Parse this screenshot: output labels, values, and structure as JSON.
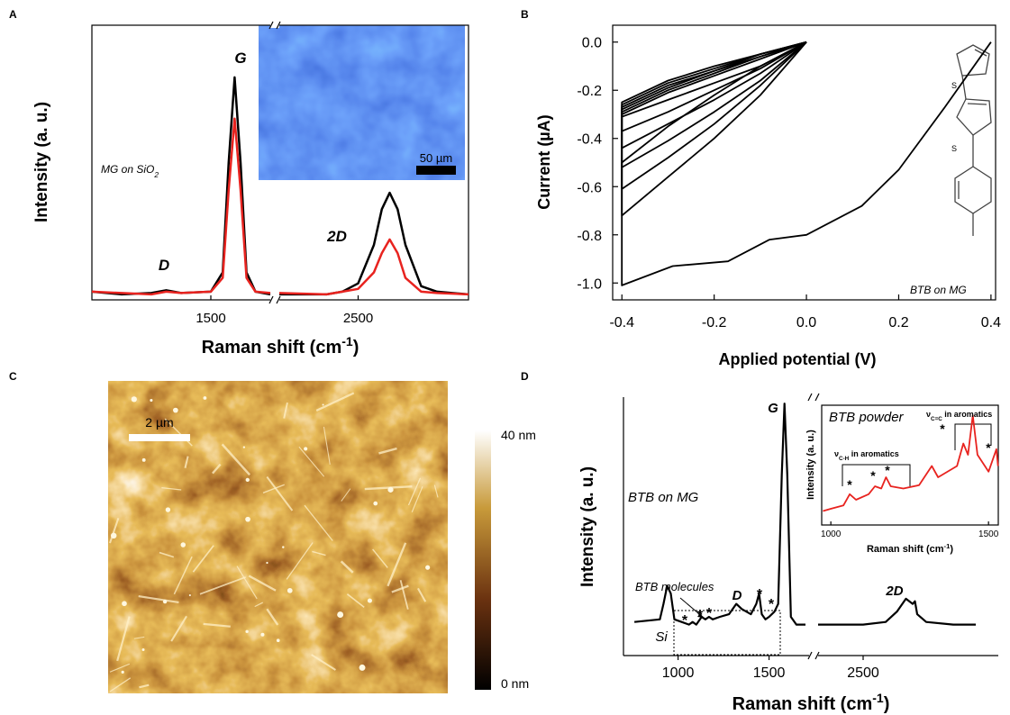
{
  "chart_data": [
    {
      "type": "line",
      "panel": "A",
      "ylabel": "Intensity (a. u.)",
      "xlabel": [
        "Raman shift (cm",
        "-1",
        ")"
      ],
      "xlim": [
        [
          1100,
          1700
        ],
        [
          2000,
          3200
        ]
      ],
      "xticks": [
        1500,
        2500
      ],
      "ylim": [
        0,
        1
      ],
      "x": [
        1100,
        1200,
        1300,
        1350,
        1400,
        1500,
        1540,
        1560,
        1580,
        1600,
        1620,
        1650,
        1700,
        null,
        2000,
        2300,
        2400,
        2500,
        2600,
        2650,
        2700,
        2750,
        2800,
        2900,
        3000,
        3200
      ],
      "series": [
        {
          "color": "#000000",
          "values": [
            0.03,
            0.02,
            0.025,
            0.035,
            0.025,
            0.03,
            0.1,
            0.5,
            0.81,
            0.5,
            0.1,
            0.03,
            0.02,
            null,
            0.02,
            0.02,
            0.03,
            0.06,
            0.2,
            0.33,
            0.39,
            0.33,
            0.2,
            0.05,
            0.03,
            0.02
          ]
        },
        {
          "color": "#e8231f",
          "values": [
            0.03,
            0.025,
            0.02,
            0.03,
            0.025,
            0.03,
            0.08,
            0.4,
            0.66,
            0.4,
            0.08,
            0.03,
            0.025,
            null,
            0.025,
            0.02,
            0.03,
            0.04,
            0.1,
            0.17,
            0.22,
            0.17,
            0.08,
            0.03,
            0.025,
            0.02
          ]
        }
      ],
      "peak_labels": [
        "G",
        "D",
        "2D"
      ],
      "sample_label": [
        "MG on SiO",
        "2"
      ],
      "scale_bar": "50 µm"
    },
    {
      "type": "line",
      "panel": "B",
      "xlabel": "Applied potential (V)",
      "ylabel": "Current (µA)",
      "xlim": [
        -0.42,
        0.41
      ],
      "ylim": [
        -1.07,
        0.07
      ],
      "xticks": [
        -0.4,
        -0.2,
        {
          "value": 0,
          "label": "0.0"
        },
        0.2,
        0.4
      ],
      "yticks": [
        {
          "value": 0,
          "label": "0.0"
        },
        -0.2,
        -0.4,
        -0.6,
        -0.8,
        {
          "value": -1,
          "label": "-1.0"
        }
      ],
      "label": "BTB on MG",
      "molecule_atoms": [
        "S",
        "S"
      ],
      "series": [
        {
          "color": "#000000",
          "x": [
            0.4,
            0.3,
            0.2,
            0.12,
            0.0,
            -0.08,
            -0.17,
            -0.29,
            -0.4,
            -0.4,
            -0.3,
            -0.2,
            -0.1,
            0.0
          ],
          "values": [
            0.0,
            -0.27,
            -0.53,
            -0.68,
            -0.8,
            -0.82,
            -0.91,
            -0.93,
            -1.01,
            -0.5,
            -0.35,
            -0.22,
            -0.1,
            0.0
          ]
        },
        {
          "color": "#000000",
          "x": [
            0.0,
            -0.1,
            -0.2,
            -0.3,
            -0.4,
            -0.4,
            -0.3,
            -0.2,
            -0.1,
            0.0
          ],
          "values": [
            0,
            -0.22,
            -0.4,
            -0.56,
            -0.72,
            -0.3,
            -0.21,
            -0.14,
            -0.07,
            0
          ]
        },
        {
          "color": "#000000",
          "x": [
            0.0,
            -0.1,
            -0.2,
            -0.3,
            -0.4,
            -0.4,
            -0.3,
            -0.2,
            -0.1,
            0.0
          ],
          "values": [
            0,
            -0.18,
            -0.34,
            -0.48,
            -0.61,
            -0.29,
            -0.2,
            -0.13,
            -0.06,
            0
          ]
        },
        {
          "color": "#000000",
          "x": [
            0.0,
            -0.1,
            -0.2,
            -0.3,
            -0.4,
            -0.4,
            -0.3,
            -0.2,
            -0.1,
            0.0
          ],
          "values": [
            0,
            -0.16,
            -0.29,
            -0.41,
            -0.52,
            -0.28,
            -0.19,
            -0.12,
            -0.06,
            0
          ]
        },
        {
          "color": "#000000",
          "x": [
            0.0,
            -0.1,
            -0.2,
            -0.3,
            -0.4,
            -0.4,
            -0.3,
            -0.2,
            -0.1,
            0.0
          ],
          "values": [
            0,
            -0.13,
            -0.24,
            -0.34,
            -0.44,
            -0.27,
            -0.18,
            -0.12,
            -0.05,
            0
          ]
        },
        {
          "color": "#000000",
          "x": [
            0.0,
            -0.1,
            -0.2,
            -0.3,
            -0.4,
            -0.4,
            -0.3,
            -0.2,
            -0.1,
            0.0
          ],
          "values": [
            0,
            -0.11,
            -0.2,
            -0.29,
            -0.37,
            -0.26,
            -0.17,
            -0.11,
            -0.05,
            0
          ]
        },
        {
          "color": "#000000",
          "x": [
            0.0,
            -0.1,
            -0.2,
            -0.3,
            -0.4,
            -0.4,
            -0.3,
            -0.2,
            -0.1,
            0.0
          ],
          "values": [
            0,
            -0.1,
            -0.17,
            -0.24,
            -0.31,
            -0.25,
            -0.16,
            -0.1,
            -0.05,
            0
          ]
        }
      ]
    },
    {
      "type": "image",
      "panel": "C",
      "scale_bar": "2 µm",
      "clim": [
        0,
        40
      ],
      "cticks": [
        {
          "value": 0,
          "label": "0 nm"
        },
        {
          "value": 40,
          "label": "40 nm"
        }
      ]
    },
    {
      "type": "line",
      "panel": "D",
      "ylabel": "Intensity (a. u.)",
      "xlabel": [
        "Raman shift (cm",
        "-1",
        ")"
      ],
      "xlim": [
        [
          700,
          1720
        ],
        [
          2300,
          3100
        ]
      ],
      "xticks": [
        1000,
        1500,
        2500
      ],
      "ylim": [
        0,
        1
      ],
      "x": [
        760,
        900,
        920,
        940,
        960,
        980,
        1020,
        1060,
        1080,
        1100,
        1130,
        1150,
        1170,
        1190,
        1230,
        1280,
        1320,
        1350,
        1400,
        1430,
        1445,
        1460,
        1480,
        1500,
        1530,
        1550,
        1570,
        1585,
        1600,
        1620,
        1650,
        1700,
        null,
        2300,
        2500,
        2600,
        2650,
        2690,
        2720,
        2730,
        2740,
        2780,
        2900,
        3000
      ],
      "series": [
        {
          "color": "#000000",
          "values": [
            0.13,
            0.14,
            0.2,
            0.27,
            0.24,
            0.14,
            0.13,
            0.12,
            0.13,
            0.12,
            0.15,
            0.14,
            0.15,
            0.14,
            0.15,
            0.16,
            0.2,
            0.18,
            0.16,
            0.2,
            0.24,
            0.16,
            0.14,
            0.15,
            0.17,
            0.2,
            0.7,
            0.975,
            0.7,
            0.15,
            0.12,
            0.12,
            null,
            0.12,
            0.12,
            0.13,
            0.17,
            0.22,
            0.2,
            0.21,
            0.16,
            0.13,
            0.12,
            0.12
          ]
        }
      ],
      "peak_labels": [
        "G",
        "D",
        "2D",
        "Si"
      ],
      "sample_label": "BTB on MG",
      "box_label": "BTB molecules",
      "stars": [
        {
          "text": "*",
          "color": "#000000"
        },
        {
          "text": "*",
          "color": "#e8231f"
        },
        {
          "text": "*",
          "color": "#22dd22"
        },
        {
          "text": "*",
          "color": "#9a8a1a"
        },
        {
          "text": "*",
          "color": "#7a3cff"
        }
      ],
      "inset": {
        "label": "BTB powder",
        "ylabel": "Intensity (a. u.)",
        "xlabel": [
          "Raman shift (cm",
          "-1",
          ")"
        ],
        "xlim": [
          971,
          1531
        ],
        "xticks": [
          1000,
          1500
        ],
        "ylim": [
          0,
          1
        ],
        "x": [
          975,
          1000,
          1040,
          1060,
          1080,
          1120,
          1140,
          1160,
          1175,
          1190,
          1230,
          1280,
          1320,
          1340,
          1400,
          1420,
          1435,
          1450,
          1465,
          1500,
          1525,
          1530
        ],
        "series": [
          {
            "color": "#e8231f",
            "values": [
              0.1,
              0.12,
              0.15,
              0.25,
              0.2,
              0.25,
              0.32,
              0.3,
              0.4,
              0.32,
              0.3,
              0.33,
              0.5,
              0.4,
              0.5,
              0.7,
              0.6,
              0.95,
              0.6,
              0.45,
              0.65,
              0.5
            ]
          }
        ],
        "bands": [
          [
            "ν",
            "C-H",
            " in aromatics"
          ],
          [
            "ν",
            "C=C",
            " in aromatics"
          ]
        ],
        "stars": [
          {
            "text": "*",
            "color": "#000000"
          },
          {
            "text": "*",
            "color": "#e8231f"
          },
          {
            "text": "*",
            "color": "#22dd22"
          },
          {
            "text": "*",
            "color": "#9a8a1a"
          },
          {
            "text": "*",
            "color": "#7a3cff"
          }
        ]
      }
    }
  ]
}
